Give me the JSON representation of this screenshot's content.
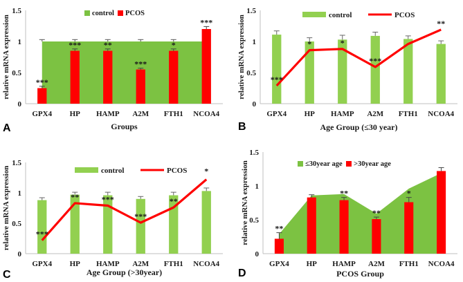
{
  "chart_data": [
    {
      "panel": "A",
      "type": "bar",
      "title": "",
      "xlabel": "Groups",
      "ylabel": "relative mRNA expression",
      "ylim": [
        0,
        1.5
      ],
      "yticks": [
        "0",
        "0.5",
        "1",
        "1.5"
      ],
      "categories": [
        "GPX4",
        "HP",
        "HAMP",
        "A2M",
        "FTH1",
        "NCOA4"
      ],
      "series": [
        {
          "name": "control",
          "render": "area",
          "color": "#7cc242",
          "values": [
            1.0,
            1.0,
            1.0,
            1.0,
            1.0,
            1.0
          ],
          "errors": [
            0.03,
            0.03,
            0.03,
            0.03,
            0.03,
            0.03
          ]
        },
        {
          "name": "PCOS",
          "render": "bar",
          "color": "#ff0000",
          "values": [
            0.25,
            0.85,
            0.85,
            0.55,
            0.85,
            1.2
          ],
          "errors": [
            0.03,
            0.03,
            0.03,
            0.02,
            0.03,
            0.04
          ]
        }
      ],
      "significance": [
        "***",
        "***",
        "**",
        "***",
        "*",
        "***"
      ],
      "legend": [
        "control",
        "PCOS"
      ]
    },
    {
      "panel": "B",
      "type": "bar",
      "title": "",
      "xlabel": "Age Group (≤30 year)",
      "ylabel": "relative mRNA expression",
      "ylim": [
        0,
        1.5
      ],
      "yticks": [
        "0",
        "0.5",
        "1",
        "1.5"
      ],
      "categories": [
        "GPX4",
        "HP",
        "HAMP",
        "A2M",
        "FTH1",
        "NCOA4"
      ],
      "series": [
        {
          "name": "control",
          "render": "bar",
          "color": "#92d050",
          "values": [
            1.11,
            1.0,
            1.03,
            1.09,
            1.04,
            0.96
          ],
          "errors": [
            0.06,
            0.06,
            0.07,
            0.06,
            0.05,
            0.05
          ]
        },
        {
          "name": "PCOS",
          "render": "line",
          "color": "#ff0000",
          "values": [
            0.29,
            0.86,
            0.88,
            0.59,
            0.96,
            1.19
          ],
          "errors": []
        }
      ],
      "significance": [
        "***",
        "*",
        "*",
        "***",
        "",
        "**"
      ],
      "legend": [
        "control",
        "PCOS"
      ]
    },
    {
      "panel": "C",
      "type": "bar",
      "title": "",
      "xlabel": "Age Group (>30year)",
      "ylabel": "relative mRNA expression",
      "ylim": [
        0,
        1.5
      ],
      "yticks": [
        "0",
        "0.5",
        "1",
        "1.5"
      ],
      "categories": [
        "GPX4",
        "HP",
        "HAMP",
        "A2M",
        "FTH1",
        "NCOA4"
      ],
      "series": [
        {
          "name": "control",
          "render": "bar",
          "color": "#92d050",
          "values": [
            0.88,
            0.97,
            0.96,
            0.9,
            0.96,
            1.03
          ],
          "errors": [
            0.04,
            0.04,
            0.05,
            0.04,
            0.05,
            0.05
          ]
        },
        {
          "name": "PCOS",
          "render": "line",
          "color": "#ff0000",
          "values": [
            0.22,
            0.83,
            0.79,
            0.51,
            0.76,
            1.22
          ],
          "errors": []
        }
      ],
      "significance": [
        "***",
        "**",
        "***",
        "***",
        "**",
        "*"
      ],
      "legend": [
        "control",
        "PCOS"
      ]
    },
    {
      "panel": "D",
      "type": "bar",
      "title": "",
      "xlabel": "PCOS Group",
      "ylabel": "relative mRNA expression",
      "ylim": [
        0,
        1.5
      ],
      "yticks": [
        "0",
        "0.5",
        "1",
        "1.5"
      ],
      "categories": [
        "GPX4",
        "HP",
        "HAMP",
        "A2M",
        "FTH1",
        "NCOA4"
      ],
      "series": [
        {
          "name": "≤30year age",
          "render": "area",
          "color": "#7cc242",
          "values": [
            0.29,
            0.86,
            0.88,
            0.59,
            0.96,
            1.19
          ],
          "errors": []
        },
        {
          "name": ">30year age",
          "render": "bar",
          "color": "#ff0000",
          "values": [
            0.22,
            0.83,
            0.79,
            0.51,
            0.76,
            1.22
          ],
          "errors": [
            0.09,
            0.04,
            0.04,
            0.03,
            0.07,
            0.05
          ]
        }
      ],
      "significance": [
        "**",
        "",
        "**",
        "**",
        "*",
        ""
      ],
      "legend": [
        "≤30year age",
        ">30year age"
      ]
    }
  ]
}
